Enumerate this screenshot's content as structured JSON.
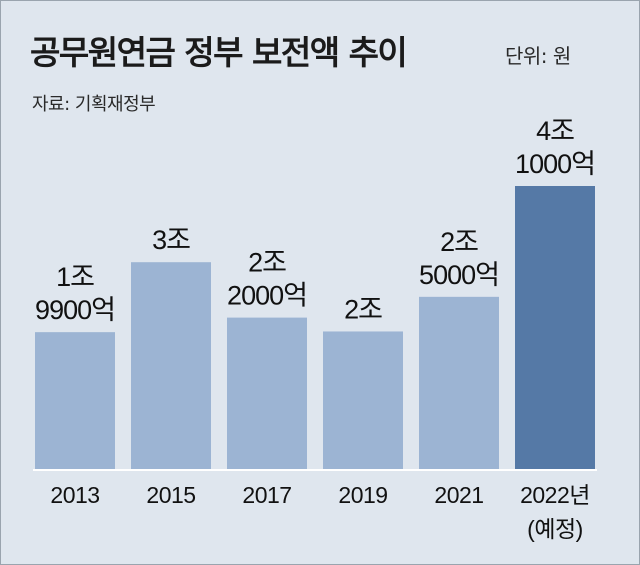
{
  "title": "공무원연금 정부 보전액 추이",
  "unit": "단위: 원",
  "source": "자료: 기획재정부",
  "chart_data": {
    "type": "bar",
    "title": "공무원연금 정부 보전액 추이",
    "unit": "원",
    "categories": [
      "2013",
      "2015",
      "2017",
      "2019",
      "2021",
      "2022년\n(예정)"
    ],
    "values_eok": [
      19900,
      30000,
      22000,
      20000,
      25000,
      41000
    ],
    "data_labels": [
      "1조\n9900억",
      "3조",
      "2조\n2000억",
      "2조",
      "2조\n5000억",
      "4조\n1000억"
    ],
    "highlight_index": 5,
    "colors": {
      "bar": "#9cb4d3",
      "highlight": "#5579a6",
      "background": "#dfe6ee"
    },
    "ylim": [
      0,
      41000
    ],
    "grid": false,
    "legend": "none"
  }
}
